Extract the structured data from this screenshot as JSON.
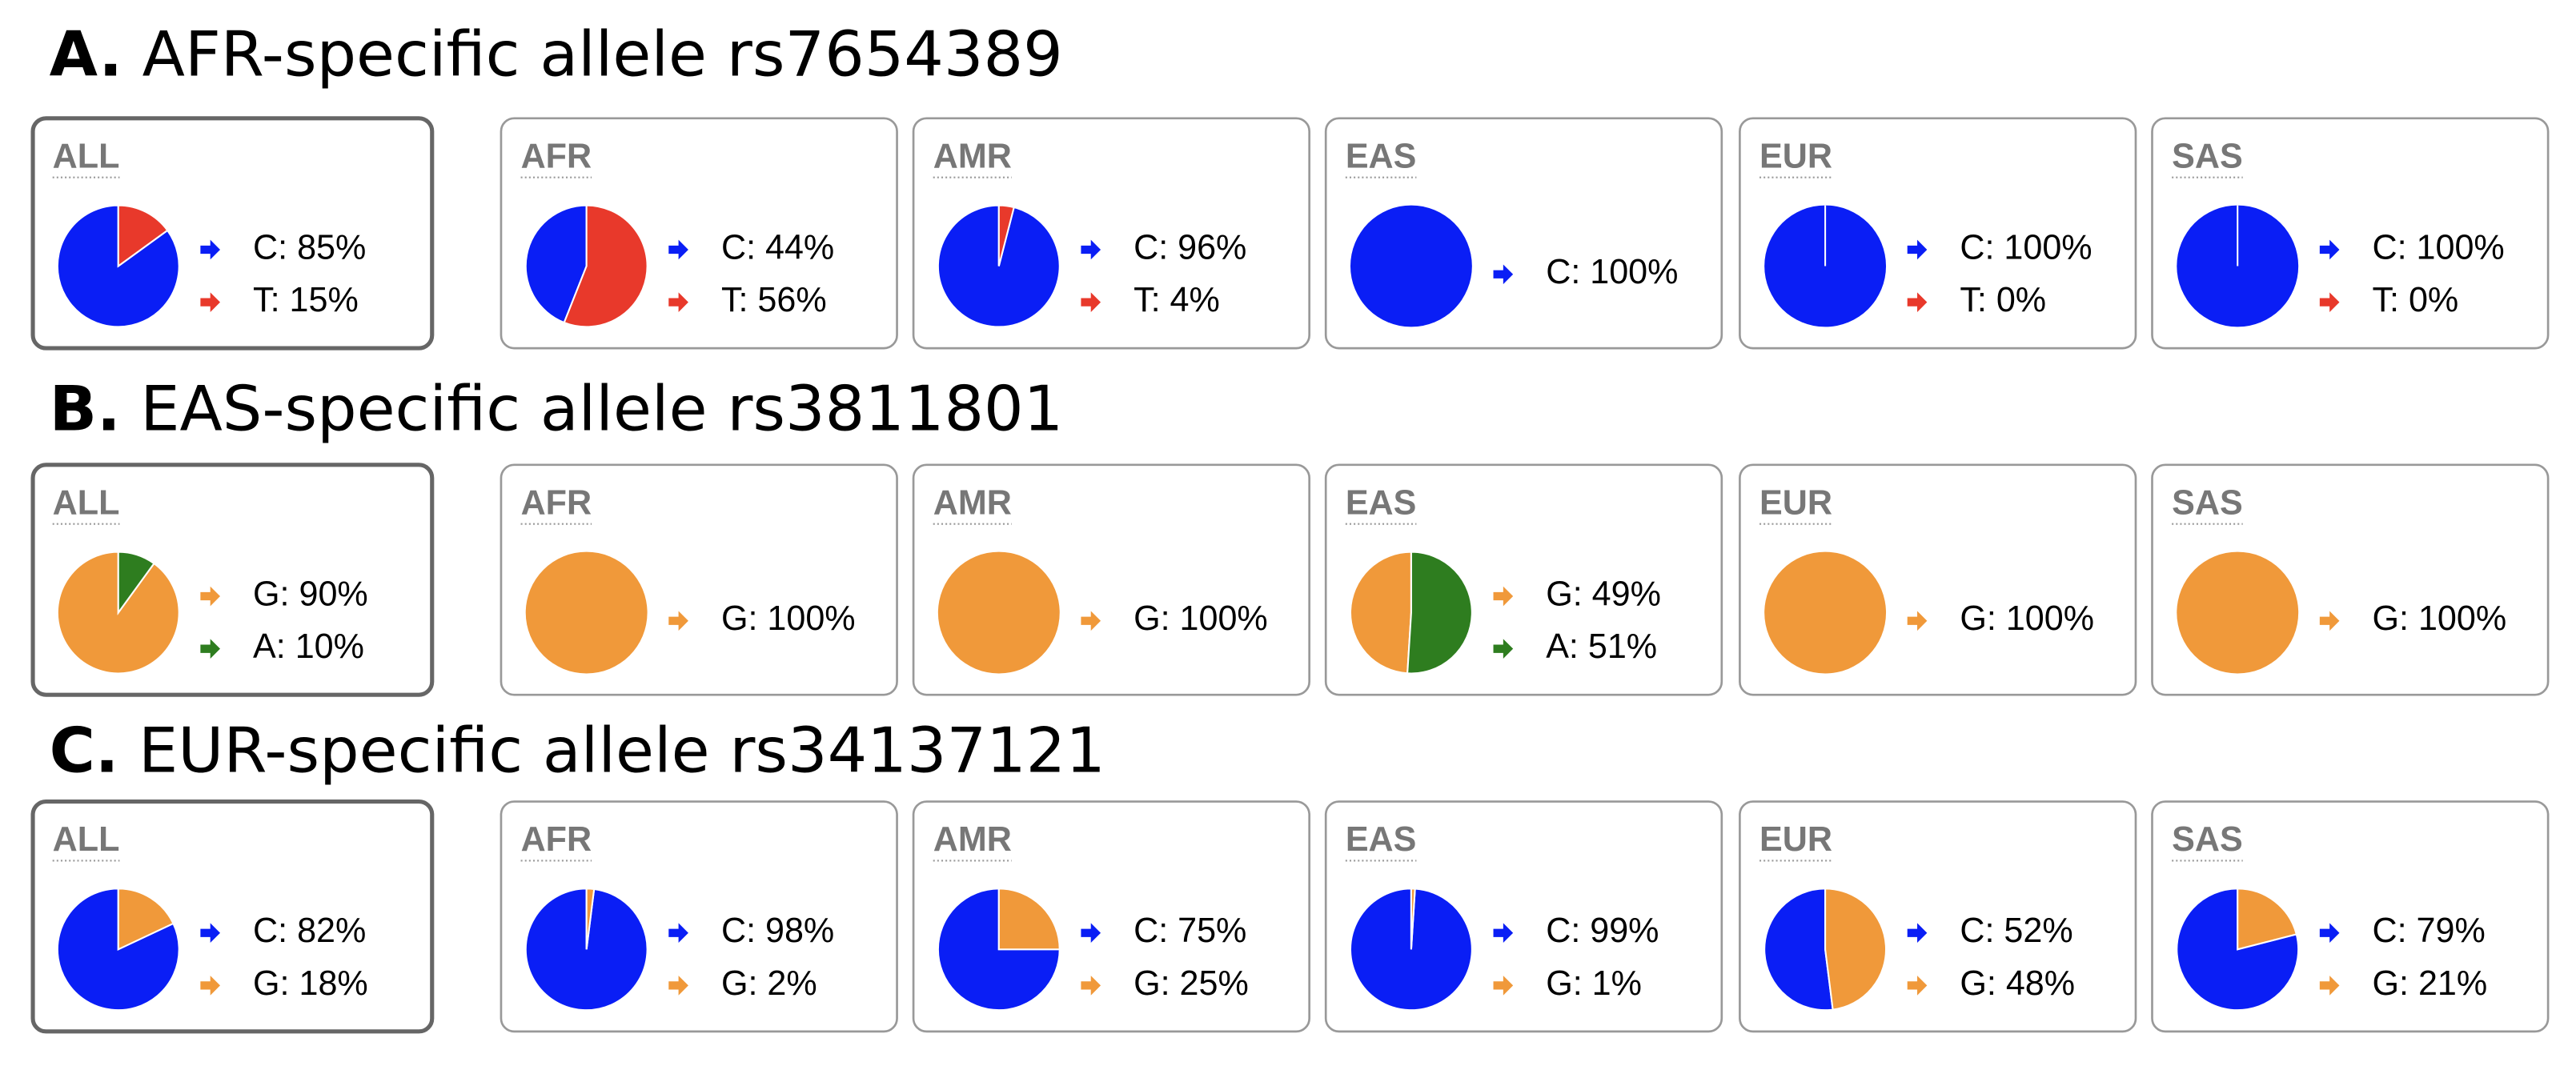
{
  "panels": [
    {
      "letter": "A.",
      "title": "AFR-specific allele rs7654389"
    },
    {
      "letter": "B.",
      "title": "EAS-specific allele rs3811801"
    },
    {
      "letter": "C.",
      "title": "EUR-specific allele rs34137121"
    }
  ],
  "chart_data": [
    {
      "type": "pie",
      "title": "ALL",
      "values": [
        85,
        15
      ],
      "value_labels": [
        "C: 85%",
        "T: 15%"
      ],
      "colors": [
        "#0a1ef5",
        "#e8392b"
      ]
    },
    {
      "type": "pie",
      "title": "AFR",
      "values": [
        44,
        56
      ],
      "value_labels": [
        "C: 44%",
        "T: 56%"
      ],
      "colors": [
        "#0a1ef5",
        "#e8392b"
      ]
    },
    {
      "type": "pie",
      "title": "AMR",
      "values": [
        96,
        4
      ],
      "value_labels": [
        "C: 96%",
        "T: 4%"
      ],
      "colors": [
        "#0a1ef5",
        "#e8392b"
      ]
    },
    {
      "type": "pie",
      "title": "EAS",
      "values": [
        100
      ],
      "value_labels": [
        "C: 100%"
      ],
      "colors": [
        "#0a1ef5"
      ]
    },
    {
      "type": "pie",
      "title": "EUR",
      "values": [
        100,
        0
      ],
      "value_labels": [
        "C: 100%",
        "T: 0%"
      ],
      "colors": [
        "#0a1ef5",
        "#e8392b"
      ]
    },
    {
      "type": "pie",
      "title": "SAS",
      "values": [
        100,
        0
      ],
      "value_labels": [
        "C: 100%",
        "T: 0%"
      ],
      "colors": [
        "#0a1ef5",
        "#e8392b"
      ]
    },
    {
      "type": "pie",
      "title": "ALL",
      "values": [
        90,
        10
      ],
      "value_labels": [
        "G: 90%",
        "A: 10%"
      ],
      "colors": [
        "#f0993a",
        "#2e7d1f"
      ]
    },
    {
      "type": "pie",
      "title": "AFR",
      "values": [
        100
      ],
      "value_labels": [
        "G: 100%"
      ],
      "colors": [
        "#f0993a"
      ]
    },
    {
      "type": "pie",
      "title": "AMR",
      "values": [
        100
      ],
      "value_labels": [
        "G: 100%"
      ],
      "colors": [
        "#f0993a"
      ]
    },
    {
      "type": "pie",
      "title": "EAS",
      "values": [
        49,
        51
      ],
      "value_labels": [
        "G: 49%",
        "A: 51%"
      ],
      "colors": [
        "#f0993a",
        "#2e7d1f"
      ]
    },
    {
      "type": "pie",
      "title": "EUR",
      "values": [
        100
      ],
      "value_labels": [
        "G: 100%"
      ],
      "colors": [
        "#f0993a"
      ]
    },
    {
      "type": "pie",
      "title": "SAS",
      "values": [
        100
      ],
      "value_labels": [
        "G: 100%"
      ],
      "colors": [
        "#f0993a"
      ]
    },
    {
      "type": "pie",
      "title": "ALL",
      "values": [
        82,
        18
      ],
      "value_labels": [
        "C: 82%",
        "G: 18%"
      ],
      "colors": [
        "#0a1ef5",
        "#f0993a"
      ]
    },
    {
      "type": "pie",
      "title": "AFR",
      "values": [
        98,
        2
      ],
      "value_labels": [
        "C: 98%",
        "G: 2%"
      ],
      "colors": [
        "#0a1ef5",
        "#f0993a"
      ]
    },
    {
      "type": "pie",
      "title": "AMR",
      "values": [
        75,
        25
      ],
      "value_labels": [
        "C: 75%",
        "G: 25%"
      ],
      "colors": [
        "#0a1ef5",
        "#f0993a"
      ]
    },
    {
      "type": "pie",
      "title": "EAS",
      "values": [
        99,
        1
      ],
      "value_labels": [
        "C: 99%",
        "G: 1%"
      ],
      "colors": [
        "#0a1ef5",
        "#f0993a"
      ]
    },
    {
      "type": "pie",
      "title": "EUR",
      "values": [
        52,
        48
      ],
      "value_labels": [
        "C: 52%",
        "G: 48%"
      ],
      "colors": [
        "#0a1ef5",
        "#f0993a"
      ]
    },
    {
      "type": "pie",
      "title": "SAS",
      "values": [
        79,
        21
      ],
      "value_labels": [
        "C: 79%",
        "G: 21%"
      ],
      "colors": [
        "#0a1ef5",
        "#f0993a"
      ]
    }
  ]
}
